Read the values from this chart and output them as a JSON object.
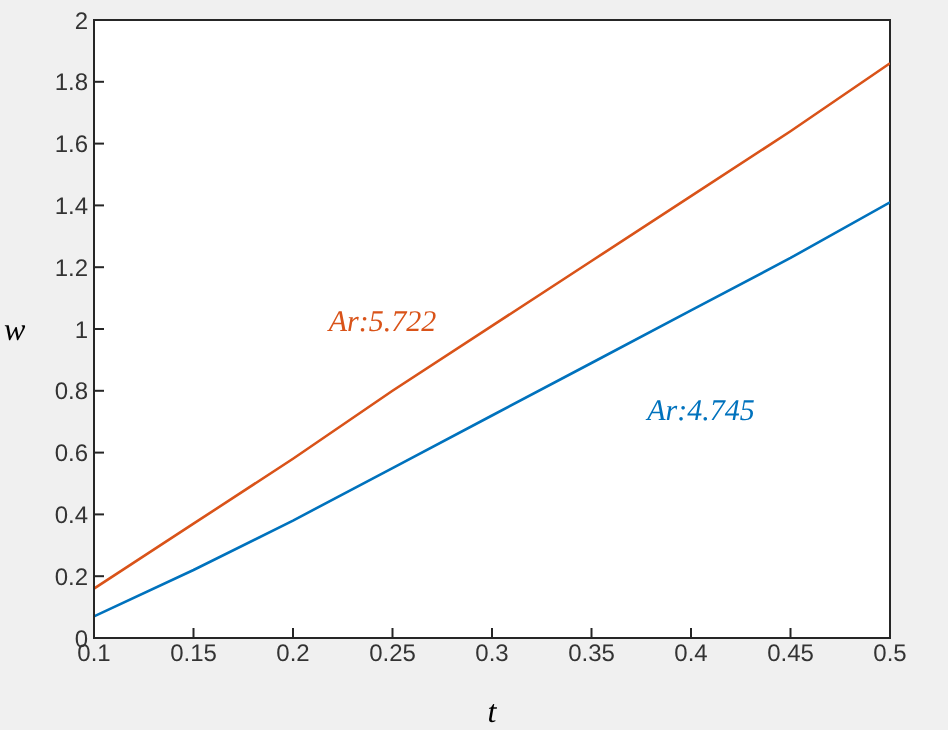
{
  "chart_data": {
    "type": "line",
    "xlabel": "t",
    "ylabel": "w",
    "x": [
      0.1,
      0.15,
      0.2,
      0.25,
      0.3,
      0.35,
      0.4,
      0.45,
      0.5
    ],
    "series": [
      {
        "name": "Ar:5.722",
        "color": "#d95319",
        "values": [
          0.16,
          0.37,
          0.58,
          0.8,
          1.01,
          1.22,
          1.43,
          1.64,
          1.86
        ]
      },
      {
        "name": "Ar:4.745",
        "color": "#0072bd",
        "values": [
          0.07,
          0.22,
          0.38,
          0.55,
          0.72,
          0.89,
          1.06,
          1.23,
          1.41
        ]
      }
    ],
    "xlim": [
      0.1,
      0.5
    ],
    "xticks": [
      0.1,
      0.15,
      0.2,
      0.25,
      0.3,
      0.35,
      0.4,
      0.45,
      0.5
    ],
    "ylim": [
      0,
      2
    ],
    "yticks": [
      0,
      0.2,
      0.4,
      0.6,
      0.8,
      1,
      1.2,
      1.4,
      1.6,
      1.8,
      2
    ],
    "marker": "none",
    "line_style": "solid"
  }
}
